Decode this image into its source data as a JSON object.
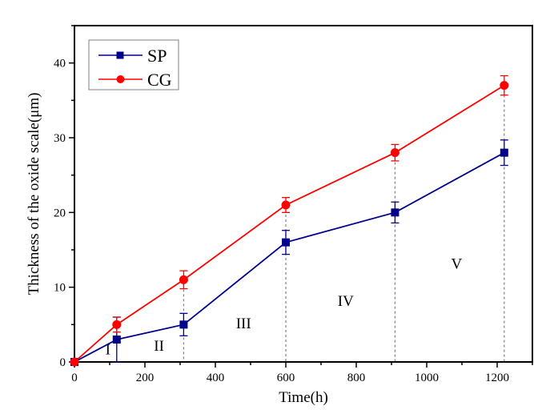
{
  "chart_data": {
    "type": "line",
    "title": "",
    "xlabel": "Time(h)",
    "ylabel": "Thickness of the oxide scale(μm)",
    "xlim": [
      0,
      1300
    ],
    "ylim": [
      0,
      45
    ],
    "xticks": [
      0,
      200,
      400,
      600,
      800,
      1000,
      1200
    ],
    "xtick_labels": [
      "0",
      "200",
      "400",
      "600",
      "800",
      "1000",
      "1200"
    ],
    "yticks": [
      0,
      10,
      20,
      30,
      40
    ],
    "ytick_labels": [
      "0",
      "10",
      "20",
      "30",
      "40"
    ],
    "grid": false,
    "legend_position": "top-left",
    "series": [
      {
        "name": "SP",
        "color": "#00008B",
        "marker": "square",
        "x": [
          0,
          120,
          310,
          600,
          910,
          1220
        ],
        "y": [
          0,
          3,
          5,
          16,
          20,
          28
        ],
        "yerr": [
          0,
          3,
          1.5,
          1.6,
          1.4,
          1.7
        ]
      },
      {
        "name": "CG",
        "color": "#FF0000",
        "marker": "circle",
        "x": [
          0,
          120,
          310,
          600,
          910,
          1220
        ],
        "y": [
          0,
          5,
          11,
          21,
          28,
          37
        ],
        "yerr": [
          0,
          1,
          1.2,
          1.0,
          1.1,
          1.3
        ]
      }
    ],
    "reference_lines": {
      "style": "dashed",
      "color": "#808080",
      "x": [
        310,
        600,
        910,
        1220
      ]
    },
    "annotations": [
      {
        "text": "I",
        "x": 95,
        "y": 1
      },
      {
        "text": "II",
        "x": 240,
        "y": 1.5
      },
      {
        "text": "III",
        "x": 480,
        "y": 4.5
      },
      {
        "text": "IV",
        "x": 770,
        "y": 7.5
      },
      {
        "text": "V",
        "x": 1085,
        "y": 12.5
      }
    ]
  }
}
